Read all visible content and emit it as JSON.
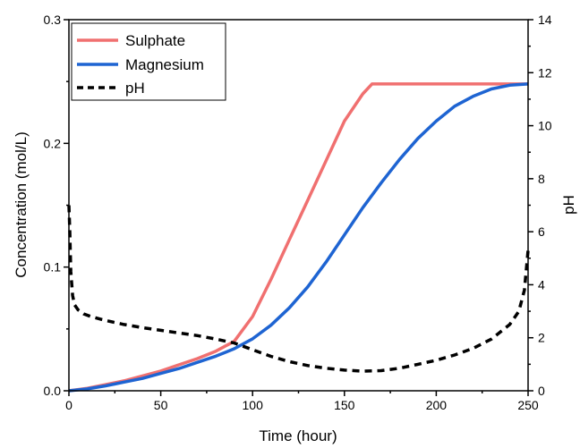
{
  "chart_data": {
    "type": "line",
    "title": "",
    "xlabel": "Time (hour)",
    "ylabel": "Concentration (mol/L)",
    "y2label": "pH",
    "xlim": [
      0,
      250
    ],
    "ylim": [
      0,
      0.3
    ],
    "y2lim": [
      0,
      14
    ],
    "x_ticks": [
      0,
      50,
      100,
      150,
      200,
      250
    ],
    "y_ticks": [
      0.0,
      0.1,
      0.2,
      0.3
    ],
    "y_tick_labels": [
      "0.0",
      "0.1",
      "0.2",
      "0.3"
    ],
    "y2_ticks": [
      0,
      2,
      4,
      6,
      8,
      10,
      12,
      14
    ],
    "grid": false,
    "legend": {
      "position": "top-left"
    },
    "series": [
      {
        "name": "Sulphate",
        "axis": "left",
        "color": "#f07070",
        "style": "solid",
        "x": [
          0,
          10,
          20,
          30,
          40,
          50,
          60,
          70,
          80,
          90,
          100,
          110,
          120,
          130,
          140,
          150,
          160,
          165,
          180,
          200,
          220,
          240,
          250
        ],
        "y": [
          0.0,
          0.002,
          0.005,
          0.008,
          0.012,
          0.016,
          0.021,
          0.026,
          0.032,
          0.04,
          0.06,
          0.09,
          0.122,
          0.154,
          0.186,
          0.218,
          0.24,
          0.248,
          0.248,
          0.248,
          0.248,
          0.248,
          0.248
        ]
      },
      {
        "name": "Magnesium",
        "axis": "left",
        "color": "#1e64d2",
        "style": "solid",
        "x": [
          0,
          10,
          20,
          30,
          40,
          50,
          60,
          70,
          80,
          90,
          100,
          110,
          120,
          130,
          140,
          150,
          160,
          170,
          180,
          190,
          200,
          210,
          220,
          230,
          240,
          250
        ],
        "y": [
          0.0,
          0.0015,
          0.004,
          0.007,
          0.01,
          0.014,
          0.018,
          0.023,
          0.028,
          0.034,
          0.042,
          0.053,
          0.067,
          0.084,
          0.104,
          0.126,
          0.148,
          0.168,
          0.187,
          0.204,
          0.218,
          0.23,
          0.238,
          0.244,
          0.247,
          0.248
        ]
      },
      {
        "name": "pH",
        "axis": "right",
        "color": "#000000",
        "style": "dashed",
        "x": [
          0,
          0.5,
          1,
          2,
          3,
          5,
          8,
          12,
          20,
          30,
          40,
          50,
          60,
          70,
          80,
          90,
          100,
          110,
          120,
          130,
          140,
          150,
          160,
          170,
          180,
          190,
          200,
          210,
          220,
          230,
          240,
          245,
          248,
          250
        ],
        "y": [
          7.0,
          6.0,
          4.5,
          3.6,
          3.25,
          3.05,
          2.9,
          2.8,
          2.65,
          2.5,
          2.38,
          2.28,
          2.18,
          2.08,
          1.95,
          1.8,
          1.55,
          1.3,
          1.1,
          0.95,
          0.85,
          0.78,
          0.74,
          0.76,
          0.85,
          1.0,
          1.15,
          1.35,
          1.6,
          1.95,
          2.5,
          3.0,
          3.8,
          5.3
        ]
      }
    ]
  }
}
